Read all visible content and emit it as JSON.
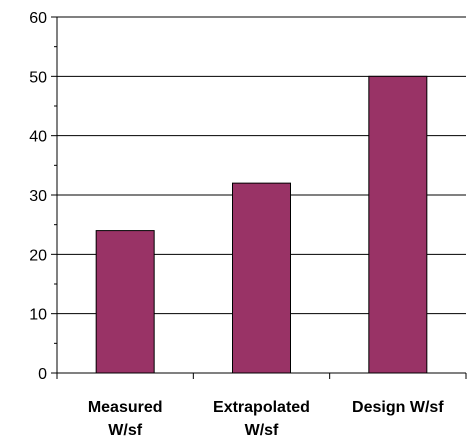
{
  "chart_data": {
    "type": "bar",
    "categories": [
      [
        "Measured",
        "W/sf"
      ],
      [
        "Extrapolated",
        "W/sf"
      ],
      [
        "Design W/sf"
      ]
    ],
    "values": [
      24,
      32,
      50
    ],
    "ylim": [
      0,
      60
    ],
    "yticks": [
      0,
      10,
      20,
      30,
      40,
      50,
      60
    ],
    "grid": true,
    "legend": "none",
    "title": "",
    "xlabel": "",
    "ylabel": ""
  },
  "colors": {
    "bar": "#993366",
    "axis": "#000000",
    "grid": "#000000"
  }
}
